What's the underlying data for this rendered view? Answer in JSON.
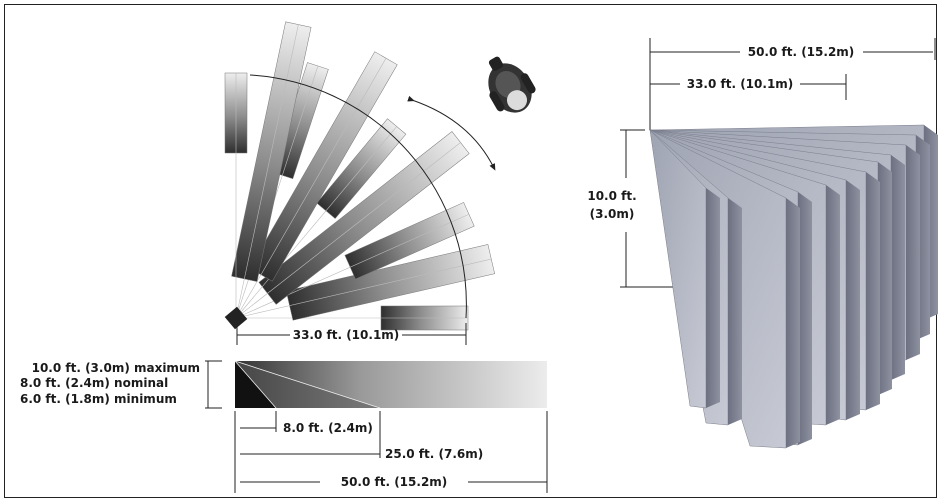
{
  "top_view": {
    "radius_label": "33.0 ft. (10.1m)"
  },
  "side_view": {
    "height_label_max": "10.0 ft. (3.0m) maximum",
    "height_label_nom": "8.0 ft. (2.4m) nominal",
    "height_label_min": "6.0 ft. (1.8m) minimum",
    "dim_near": "8.0 ft. (2.4m)",
    "dim_mid": "25.0 ft. (7.6m)",
    "dim_far": "50.0 ft. (15.2m)"
  },
  "perspective_view": {
    "width_far": "50.0 ft. (15.2m)",
    "width_near": "33.0 ft. (10.1m)",
    "height_line1": "10.0 ft.",
    "height_line2": "(3.0m)"
  }
}
